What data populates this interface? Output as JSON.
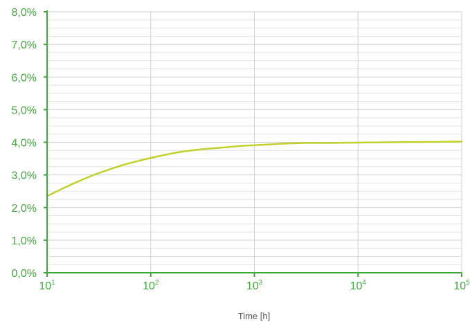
{
  "chart_data": {
    "type": "line",
    "title": "",
    "xlabel": "Time [h]",
    "ylabel": "",
    "x_scale": "log",
    "xlim": [
      10,
      100000
    ],
    "ylim": [
      0,
      8
    ],
    "grid": true,
    "x_ticks": [
      {
        "value": 10,
        "base": "10",
        "exp": "1"
      },
      {
        "value": 100,
        "base": "10",
        "exp": "2"
      },
      {
        "value": 1000,
        "base": "10",
        "exp": "3"
      },
      {
        "value": 10000,
        "base": "10",
        "exp": "4"
      },
      {
        "value": 100000,
        "base": "10",
        "exp": "5"
      }
    ],
    "y_ticks": [
      {
        "value": 0,
        "label": "0,0%"
      },
      {
        "value": 1,
        "label": "1,0%"
      },
      {
        "value": 2,
        "label": "2,0%"
      },
      {
        "value": 3,
        "label": "3,0%"
      },
      {
        "value": 4,
        "label": "4,0%"
      },
      {
        "value": 5,
        "label": "5,0%"
      },
      {
        "value": 6,
        "label": "6,0%"
      },
      {
        "value": 7,
        "label": "7,0%"
      },
      {
        "value": 8,
        "label": "8,0%"
      }
    ],
    "series": [
      {
        "x": [
          10,
          15,
          20,
          30,
          50,
          70,
          100,
          150,
          200,
          300,
          500,
          700,
          1000,
          1500,
          2000,
          3000,
          5000,
          10000,
          20000,
          50000,
          100000
        ],
        "y": [
          2.35,
          2.62,
          2.8,
          3.03,
          3.27,
          3.4,
          3.52,
          3.64,
          3.71,
          3.78,
          3.84,
          3.88,
          3.91,
          3.94,
          3.96,
          3.98,
          3.98,
          3.99,
          4.0,
          4.01,
          4.02
        ]
      }
    ],
    "colors": {
      "axis": "#3ea83a",
      "tick_text": "#3ea83a",
      "label_text": "#555555",
      "grid_major": "#cfcfcf",
      "grid_minor": "#e2e2e2",
      "line": "#c3cf2b"
    }
  }
}
